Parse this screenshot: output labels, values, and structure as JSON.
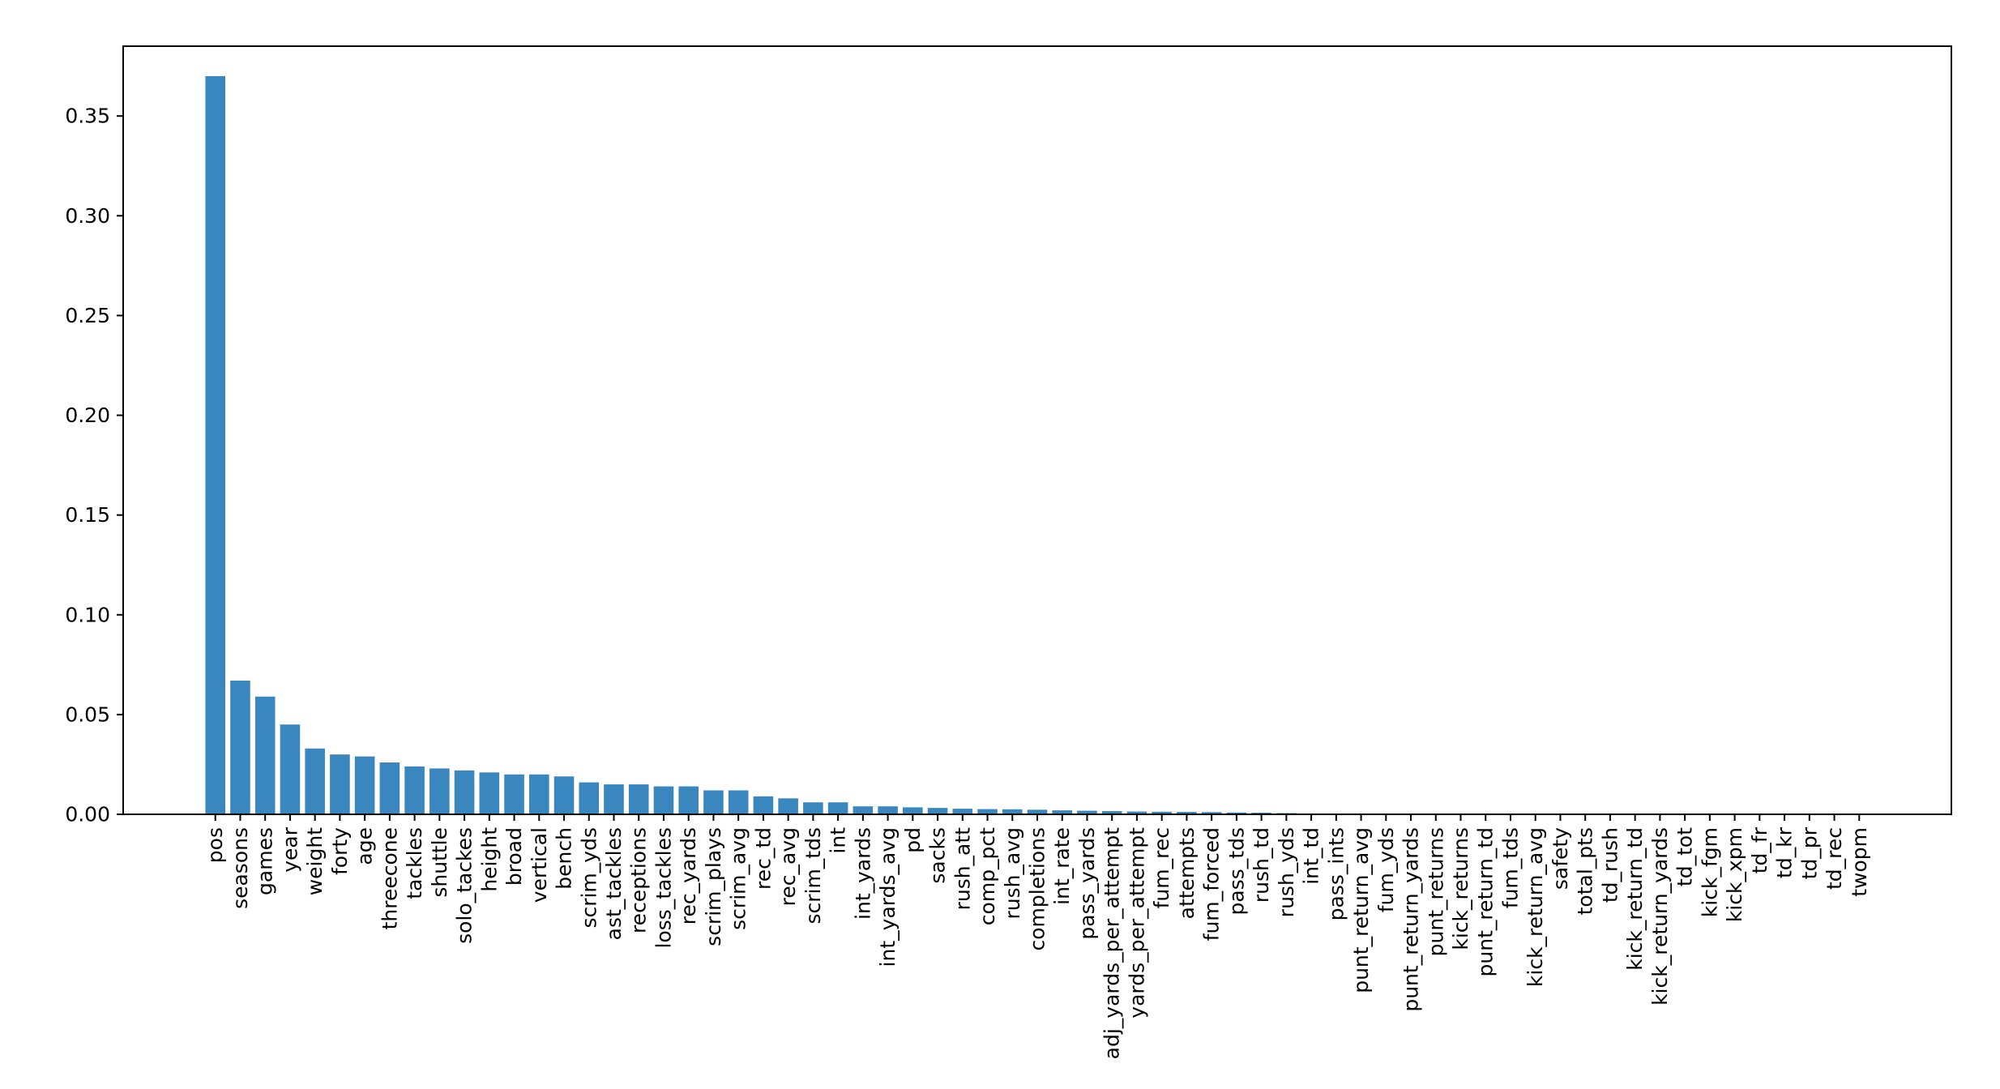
{
  "chart_data": {
    "type": "bar",
    "title": "",
    "xlabel": "",
    "ylabel": "",
    "ylim": [
      0,
      0.385
    ],
    "yticks": [
      0.0,
      0.05,
      0.1,
      0.15,
      0.2,
      0.25,
      0.3,
      0.35
    ],
    "ytick_labels": [
      "0.00",
      "0.05",
      "0.10",
      "0.15",
      "0.20",
      "0.25",
      "0.30",
      "0.35"
    ],
    "grid": false,
    "legend": "none",
    "bar_color": "#3a87c0",
    "categories": [
      "pos",
      "seasons",
      "games",
      "year",
      "weight",
      "forty",
      "age",
      "threecone",
      "tackles",
      "shuttle",
      "solo_tackes",
      "height",
      "broad",
      "vertical",
      "bench",
      "scrim_yds",
      "ast_tackles",
      "receptions",
      "loss_tackles",
      "rec_yards",
      "scrim_plays",
      "scrim_avg",
      "rec_td",
      "rec_avg",
      "scrim_tds",
      "int",
      "int_yards",
      "int_yards_avg",
      "pd",
      "sacks",
      "rush_att",
      "comp_pct",
      "rush_avg",
      "completions",
      "int_rate",
      "pass_yards",
      "adj_yards_per_attempt",
      "yards_per_attempt",
      "fum_rec",
      "attempts",
      "fum_forced",
      "pass_tds",
      "rush_td",
      "rush_yds",
      "int_td",
      "pass_ints",
      "punt_return_avg",
      "fum_yds",
      "punt_return_yards",
      "punt_returns",
      "kick_returns",
      "punt_return_td",
      "fum_tds",
      "kick_return_avg",
      "safety",
      "total_pts",
      "td_rush",
      "kick_return_td",
      "kick_return_yards",
      "td_tot",
      "kick_fgm",
      "kick_xpm",
      "td_fr",
      "td_kr",
      "td_pr",
      "td_rec",
      "twopm"
    ],
    "values": [
      0.37,
      0.067,
      0.059,
      0.045,
      0.033,
      0.03,
      0.029,
      0.026,
      0.024,
      0.023,
      0.022,
      0.021,
      0.02,
      0.02,
      0.019,
      0.016,
      0.015,
      0.015,
      0.014,
      0.014,
      0.012,
      0.012,
      0.009,
      0.008,
      0.006,
      0.006,
      0.004,
      0.004,
      0.0035,
      0.0032,
      0.0028,
      0.0026,
      0.0025,
      0.0023,
      0.002,
      0.0018,
      0.0016,
      0.0014,
      0.0013,
      0.0012,
      0.0011,
      0.0009,
      0.0008,
      0.0006,
      0.0003,
      0.0002,
      0.0002,
      0.0001,
      0.0001,
      0.0001,
      0.0001,
      0.0001,
      0.0,
      0.0,
      0.0,
      0.0,
      0.0,
      0.0,
      0.0,
      0.0,
      0.0,
      0.0,
      0.0,
      0.0,
      0.0,
      0.0,
      0.0
    ]
  }
}
